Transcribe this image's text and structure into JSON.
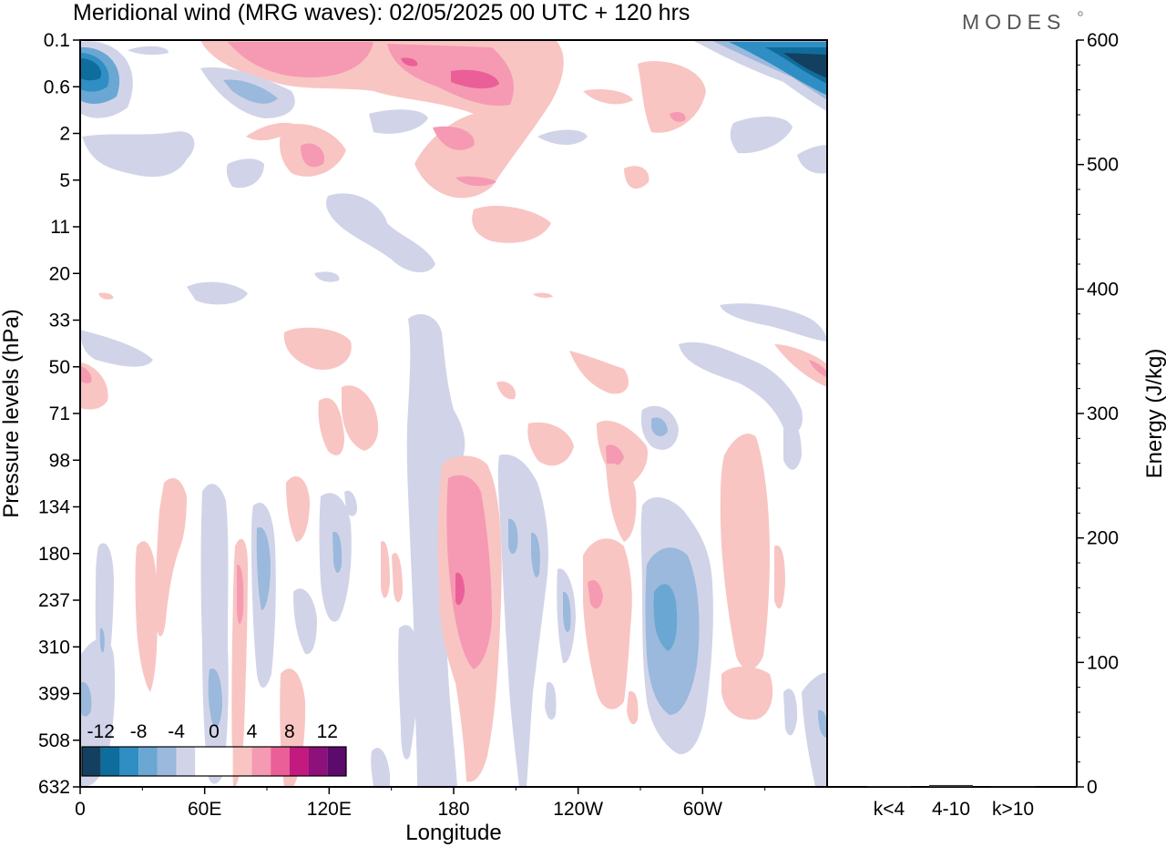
{
  "title": "Meridional wind (MRG waves):  02/05/2025  00 UTC  + 120 hrs",
  "logo": "MODES",
  "chart_data": [
    {
      "type": "heatmap",
      "title": "Meridional wind (MRG waves):  02/05/2025  00 UTC  + 120 hrs",
      "xlabel": "Longitude",
      "ylabel": "Pressure levels (hPa)",
      "x_ticks": [
        "0",
        "60E",
        "120E",
        "180",
        "120W",
        "60W"
      ],
      "x_tick_lon": [
        0,
        60,
        120,
        180,
        240,
        300
      ],
      "xlim": [
        0,
        360
      ],
      "y_ticks": [
        "0.1",
        "0.6",
        "2",
        "5",
        "11",
        "20",
        "33",
        "50",
        "71",
        "98",
        "134",
        "180",
        "237",
        "310",
        "399",
        "508",
        "632"
      ],
      "colorbar": {
        "labels": [
          "-12",
          "-8",
          "-4",
          "0",
          "4",
          "8",
          "12"
        ],
        "levels": [
          -14,
          -12,
          -10,
          -8,
          -6,
          -4,
          -2,
          0,
          2,
          4,
          6,
          8,
          10,
          12,
          14
        ],
        "colors": [
          "#14405f",
          "#0f6d9d",
          "#2f8ec4",
          "#6aa7d3",
          "#9ab9dc",
          "#d1d4e8",
          "#ffffff",
          "#ffffff",
          "#f8c5c3",
          "#f59ab2",
          "#eb5f98",
          "#c31a80",
          "#8e107a",
          "#5c0a6b"
        ]
      },
      "features": [
        {
          "sign": "neg",
          "peak": -12,
          "lon": [
            0,
            25
          ],
          "lev": [
            "0.1",
            "2"
          ]
        },
        {
          "sign": "neg",
          "peak": -12,
          "lon": [
            305,
            360
          ],
          "lev": [
            "0.1",
            "2"
          ]
        },
        {
          "sign": "pos",
          "peak": 6,
          "lon": [
            55,
            165
          ],
          "lev": [
            "0.1",
            "0.6"
          ]
        },
        {
          "sign": "pos",
          "peak": 6,
          "lon": [
            175,
            230
          ],
          "lev": [
            "0.1",
            "2"
          ]
        },
        {
          "sign": "pos",
          "peak": 8,
          "lon": [
            170,
            200
          ],
          "lev": [
            "98",
            "399"
          ]
        },
        {
          "sign": "neg",
          "peak": -8,
          "lon": [
            270,
            295
          ],
          "lev": [
            "180",
            "508"
          ]
        },
        {
          "sign": "pos",
          "peak": 4,
          "lon": [
            290,
            320
          ],
          "lev": [
            "98",
            "399"
          ]
        },
        {
          "sign": "neg",
          "peak": -4,
          "lon": [
            160,
            185
          ],
          "lev": [
            "33",
            "632"
          ]
        }
      ]
    },
    {
      "type": "bar",
      "ylabel": "Energy (J/kg)",
      "categories": [
        "k<4",
        "4-10",
        "k>10"
      ],
      "values": [
        0.5,
        1.5,
        0.3
      ],
      "ylim": [
        0,
        600
      ],
      "y_ticks": [
        "0",
        "100",
        "200",
        "300",
        "400",
        "500",
        "600"
      ]
    }
  ]
}
